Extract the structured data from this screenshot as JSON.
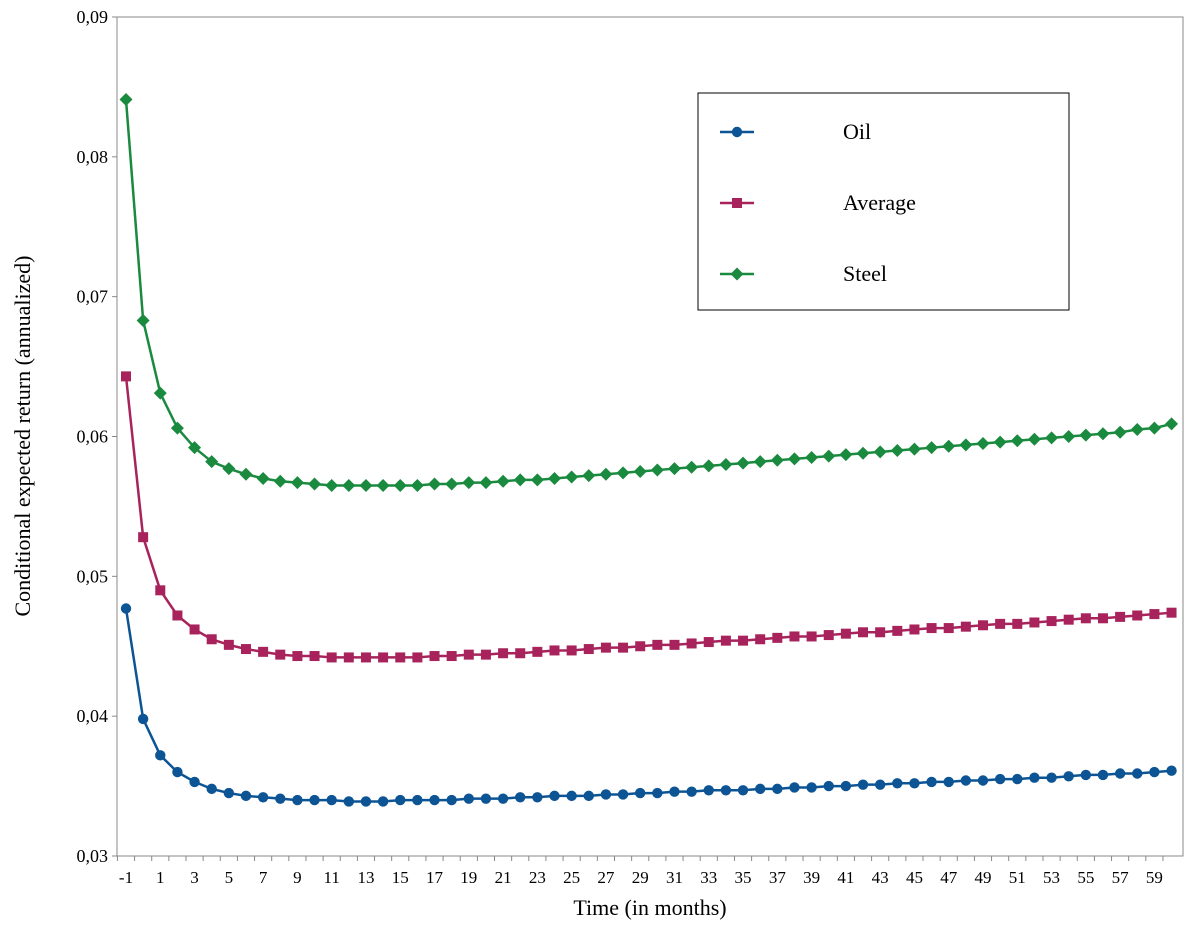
{
  "chart_data": {
    "type": "line",
    "title": "",
    "xlabel": "Time (in months)",
    "ylabel": "Conditional expected return (annualized)",
    "ylim": [
      0.03,
      0.09
    ],
    "xlim": [
      -1,
      60
    ],
    "yticks": [
      "0,03",
      "0,04",
      "0,05",
      "0,06",
      "0,07",
      "0,08",
      "0,09"
    ],
    "yticks_values": [
      0.03,
      0.04,
      0.05,
      0.06,
      0.07,
      0.08,
      0.09
    ],
    "xticks": [
      "-1",
      "1",
      "3",
      "5",
      "7",
      "9",
      "11",
      "13",
      "15",
      "17",
      "19",
      "21",
      "23",
      "25",
      "27",
      "29",
      "31",
      "33",
      "35",
      "37",
      "39",
      "41",
      "43",
      "45",
      "47",
      "49",
      "51",
      "53",
      "55",
      "57",
      "59"
    ],
    "xticks_values": [
      -1,
      1,
      3,
      5,
      7,
      9,
      11,
      13,
      15,
      17,
      19,
      21,
      23,
      25,
      27,
      29,
      31,
      33,
      35,
      37,
      39,
      41,
      43,
      45,
      47,
      49,
      51,
      53,
      55,
      57,
      59
    ],
    "grid": false,
    "legend_position": "top-right",
    "x": [
      -1,
      0,
      1,
      2,
      3,
      4,
      5,
      6,
      7,
      8,
      9,
      10,
      11,
      12,
      13,
      14,
      15,
      16,
      17,
      18,
      19,
      20,
      21,
      22,
      23,
      24,
      25,
      26,
      27,
      28,
      29,
      30,
      31,
      32,
      33,
      34,
      35,
      36,
      37,
      38,
      39,
      40,
      41,
      42,
      43,
      44,
      45,
      46,
      47,
      48,
      49,
      50,
      51,
      52,
      53,
      54,
      55,
      56,
      57,
      58,
      59,
      60
    ],
    "series": [
      {
        "name": "Oil",
        "color": "#0d5494",
        "marker": "circle",
        "values": [
          0.0477,
          0.0398,
          0.0372,
          0.036,
          0.0353,
          0.0348,
          0.0345,
          0.0343,
          0.0342,
          0.0341,
          0.034,
          0.034,
          0.034,
          0.0339,
          0.0339,
          0.0339,
          0.034,
          0.034,
          0.034,
          0.034,
          0.0341,
          0.0341,
          0.0341,
          0.0342,
          0.0342,
          0.0343,
          0.0343,
          0.0343,
          0.0344,
          0.0344,
          0.0345,
          0.0345,
          0.0346,
          0.0346,
          0.0347,
          0.0347,
          0.0347,
          0.0348,
          0.0348,
          0.0349,
          0.0349,
          0.035,
          0.035,
          0.0351,
          0.0351,
          0.0352,
          0.0352,
          0.0353,
          0.0353,
          0.0354,
          0.0354,
          0.0355,
          0.0355,
          0.0356,
          0.0356,
          0.0357,
          0.0358,
          0.0358,
          0.0359,
          0.0359,
          0.036,
          0.0361
        ]
      },
      {
        "name": "Average",
        "color": "#a8235c",
        "marker": "square",
        "values": [
          0.0643,
          0.0528,
          0.049,
          0.0472,
          0.0462,
          0.0455,
          0.0451,
          0.0448,
          0.0446,
          0.0444,
          0.0443,
          0.0443,
          0.0442,
          0.0442,
          0.0442,
          0.0442,
          0.0442,
          0.0442,
          0.0443,
          0.0443,
          0.0444,
          0.0444,
          0.0445,
          0.0445,
          0.0446,
          0.0447,
          0.0447,
          0.0448,
          0.0449,
          0.0449,
          0.045,
          0.0451,
          0.0451,
          0.0452,
          0.0453,
          0.0454,
          0.0454,
          0.0455,
          0.0456,
          0.0457,
          0.0457,
          0.0458,
          0.0459,
          0.046,
          0.046,
          0.0461,
          0.0462,
          0.0463,
          0.0463,
          0.0464,
          0.0465,
          0.0466,
          0.0466,
          0.0467,
          0.0468,
          0.0469,
          0.047,
          0.047,
          0.0471,
          0.0472,
          0.0473,
          0.0474
        ]
      },
      {
        "name": "Steel",
        "color": "#1a8a3f",
        "marker": "diamond",
        "values": [
          0.0841,
          0.0683,
          0.0631,
          0.0606,
          0.0592,
          0.0582,
          0.0577,
          0.0573,
          0.057,
          0.0568,
          0.0567,
          0.0566,
          0.0565,
          0.0565,
          0.0565,
          0.0565,
          0.0565,
          0.0565,
          0.0566,
          0.0566,
          0.0567,
          0.0567,
          0.0568,
          0.0569,
          0.0569,
          0.057,
          0.0571,
          0.0572,
          0.0573,
          0.0574,
          0.0575,
          0.0576,
          0.0577,
          0.0578,
          0.0579,
          0.058,
          0.0581,
          0.0582,
          0.0583,
          0.0584,
          0.0585,
          0.0586,
          0.0587,
          0.0588,
          0.0589,
          0.059,
          0.0591,
          0.0592,
          0.0593,
          0.0594,
          0.0595,
          0.0596,
          0.0597,
          0.0598,
          0.0599,
          0.06,
          0.0601,
          0.0602,
          0.0603,
          0.0605,
          0.0606,
          0.0609
        ]
      }
    ]
  }
}
